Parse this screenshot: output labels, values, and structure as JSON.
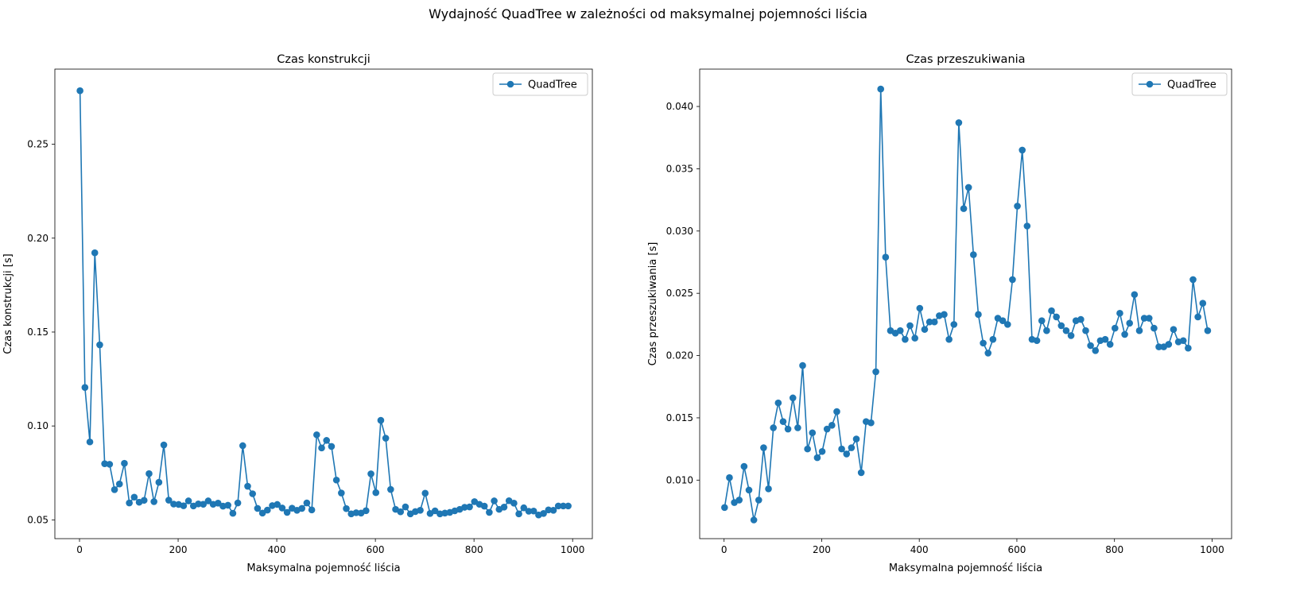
{
  "figure": {
    "suptitle": "Wydajność QuadTree w zależności od maksymalnej pojemności liścia"
  },
  "chart_data": [
    {
      "type": "line",
      "title": "Czas konstrukcji",
      "xlabel": "Maksymalna pojemność liścia",
      "ylabel": "Czas konstrukcji [s]",
      "xlim": [
        -50,
        1040
      ],
      "ylim": [
        0.04,
        0.29
      ],
      "xticks": [
        0,
        200,
        400,
        600,
        800,
        1000
      ],
      "yticks": [
        0.05,
        0.1,
        0.15,
        0.2,
        0.25
      ],
      "ytick_labels": [
        "0.05",
        "0.10",
        "0.15",
        "0.20",
        "0.25"
      ],
      "grid": false,
      "legend": "top-right",
      "color": "#1f77b4",
      "series": [
        {
          "name": "QuadTree",
          "x": [
            1,
            11,
            21,
            31,
            41,
            51,
            61,
            71,
            81,
            91,
            101,
            111,
            121,
            131,
            141,
            151,
            161,
            171,
            181,
            191,
            201,
            211,
            221,
            231,
            241,
            251,
            261,
            271,
            281,
            291,
            301,
            311,
            321,
            331,
            341,
            351,
            361,
            371,
            381,
            391,
            401,
            411,
            421,
            431,
            441,
            451,
            461,
            471,
            481,
            491,
            501,
            511,
            521,
            531,
            541,
            551,
            561,
            571,
            581,
            591,
            601,
            611,
            621,
            631,
            641,
            651,
            661,
            671,
            681,
            691,
            701,
            711,
            721,
            731,
            741,
            751,
            761,
            771,
            781,
            791,
            801,
            811,
            821,
            831,
            841,
            851,
            861,
            871,
            881,
            891,
            901,
            911,
            921,
            931,
            941,
            951,
            961,
            971,
            981,
            991
          ],
          "y": [
            0.2785,
            0.1205,
            0.0915,
            0.1922,
            0.1432,
            0.0799,
            0.0796,
            0.0661,
            0.0691,
            0.0801,
            0.059,
            0.0621,
            0.0594,
            0.0604,
            0.0746,
            0.0597,
            0.07,
            0.0899,
            0.0605,
            0.0584,
            0.0582,
            0.0575,
            0.0601,
            0.0574,
            0.0585,
            0.0583,
            0.0601,
            0.0583,
            0.0589,
            0.0573,
            0.0578,
            0.0535,
            0.059,
            0.0895,
            0.0679,
            0.0639,
            0.0561,
            0.0536,
            0.0552,
            0.0576,
            0.0582,
            0.0563,
            0.054,
            0.0562,
            0.0551,
            0.0561,
            0.059,
            0.0553,
            0.0953,
            0.0883,
            0.0923,
            0.0891,
            0.0712,
            0.0643,
            0.056,
            0.0532,
            0.0538,
            0.0536,
            0.0549,
            0.0745,
            0.0645,
            0.103,
            0.0935,
            0.0662,
            0.0556,
            0.0543,
            0.0569,
            0.0532,
            0.0544,
            0.0551,
            0.0642,
            0.0534,
            0.0548,
            0.0532,
            0.0536,
            0.054,
            0.0548,
            0.0556,
            0.0567,
            0.0569,
            0.0597,
            0.0583,
            0.0573,
            0.054,
            0.0601,
            0.0556,
            0.0568,
            0.0602,
            0.0589,
            0.0532,
            0.0564,
            0.0546,
            0.0547,
            0.0526,
            0.0534,
            0.0553,
            0.0551,
            0.0574,
            0.0574,
            0.0574
          ]
        }
      ]
    },
    {
      "type": "line",
      "title": "Czas przeszukiwania",
      "xlabel": "Maksymalna pojemność liścia",
      "ylabel": "Czas przeszukiwania [s]",
      "xlim": [
        -50,
        1040
      ],
      "ylim": [
        0.0053,
        0.043
      ],
      "xticks": [
        0,
        200,
        400,
        600,
        800,
        1000
      ],
      "yticks": [
        0.01,
        0.015,
        0.02,
        0.025,
        0.03,
        0.035,
        0.04
      ],
      "ytick_labels": [
        "0.010",
        "0.015",
        "0.020",
        "0.025",
        "0.030",
        "0.035",
        "0.040"
      ],
      "grid": false,
      "legend": "top-right",
      "color": "#1f77b4",
      "series": [
        {
          "name": "QuadTree",
          "x": [
            1,
            11,
            21,
            31,
            41,
            51,
            61,
            71,
            81,
            91,
            101,
            111,
            121,
            131,
            141,
            151,
            161,
            171,
            181,
            191,
            201,
            211,
            221,
            231,
            241,
            251,
            261,
            271,
            281,
            291,
            301,
            311,
            321,
            331,
            341,
            351,
            361,
            371,
            381,
            391,
            401,
            411,
            421,
            431,
            441,
            451,
            461,
            471,
            481,
            491,
            501,
            511,
            521,
            531,
            541,
            551,
            561,
            571,
            581,
            591,
            601,
            611,
            621,
            631,
            641,
            651,
            661,
            671,
            681,
            691,
            701,
            711,
            721,
            731,
            741,
            751,
            761,
            771,
            781,
            791,
            801,
            811,
            821,
            831,
            841,
            851,
            861,
            871,
            881,
            891,
            901,
            911,
            921,
            931,
            941,
            951,
            961,
            971,
            981,
            991
          ],
          "y": [
            0.0078,
            0.0102,
            0.0082,
            0.0084,
            0.0111,
            0.0092,
            0.0068,
            0.0084,
            0.0126,
            0.0093,
            0.0142,
            0.0162,
            0.0147,
            0.0141,
            0.0166,
            0.0142,
            0.0192,
            0.0125,
            0.0138,
            0.0118,
            0.0123,
            0.0141,
            0.0144,
            0.0155,
            0.0125,
            0.0121,
            0.0126,
            0.0133,
            0.0106,
            0.0147,
            0.0146,
            0.0187,
            0.0414,
            0.0279,
            0.022,
            0.0218,
            0.022,
            0.0213,
            0.0224,
            0.0214,
            0.0238,
            0.0221,
            0.0227,
            0.0227,
            0.0232,
            0.0233,
            0.0213,
            0.0225,
            0.0387,
            0.0318,
            0.0335,
            0.0281,
            0.0233,
            0.021,
            0.0202,
            0.0213,
            0.023,
            0.0228,
            0.0225,
            0.0261,
            0.032,
            0.0365,
            0.0304,
            0.0213,
            0.0212,
            0.0228,
            0.022,
            0.0236,
            0.0231,
            0.0224,
            0.022,
            0.0216,
            0.0228,
            0.0229,
            0.022,
            0.0208,
            0.0204,
            0.0212,
            0.0213,
            0.0209,
            0.0222,
            0.0234,
            0.0217,
            0.0226,
            0.0249,
            0.022,
            0.023,
            0.023,
            0.0222,
            0.0207,
            0.0207,
            0.0209,
            0.0221,
            0.0211,
            0.0212,
            0.0206,
            0.0261,
            0.0231,
            0.0242,
            0.022
          ]
        }
      ]
    }
  ]
}
